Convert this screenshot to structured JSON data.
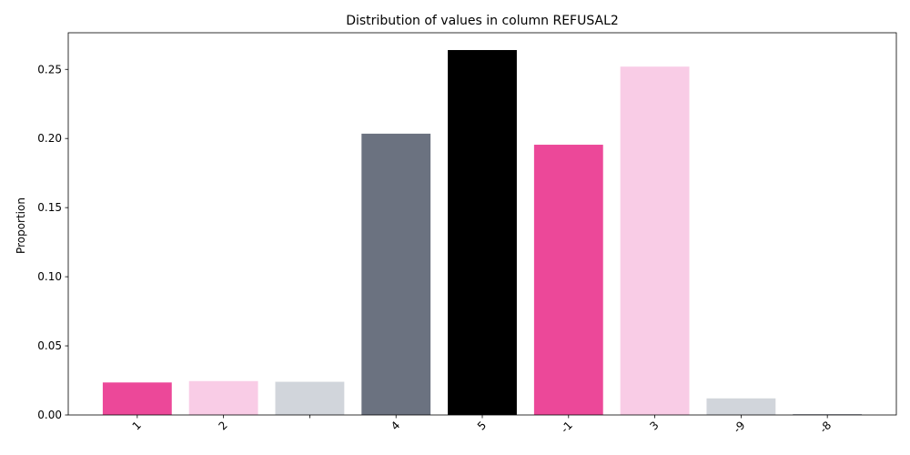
{
  "chart_data": {
    "type": "bar",
    "title": "Distribution of values in column REFUSAL2",
    "xlabel": "",
    "ylabel": "Proportion",
    "ylim": [
      0,
      0.2765
    ],
    "yticks": [
      "0.00",
      "0.05",
      "0.10",
      "0.15",
      "0.20",
      "0.25"
    ],
    "grid": false,
    "categories": [
      "1",
      "2",
      "",
      "4",
      "5",
      "-1",
      "3",
      "-9",
      "-8"
    ],
    "values": [
      0.0235,
      0.0245,
      0.024,
      0.2035,
      0.264,
      0.1955,
      0.252,
      0.012,
      0.0005
    ],
    "colors": [
      "#ec4899",
      "#f9cce6",
      "#d1d5db",
      "#6b7280",
      "#000000",
      "#ec4899",
      "#f9cce6",
      "#d1d5db",
      "#6b7280"
    ]
  }
}
